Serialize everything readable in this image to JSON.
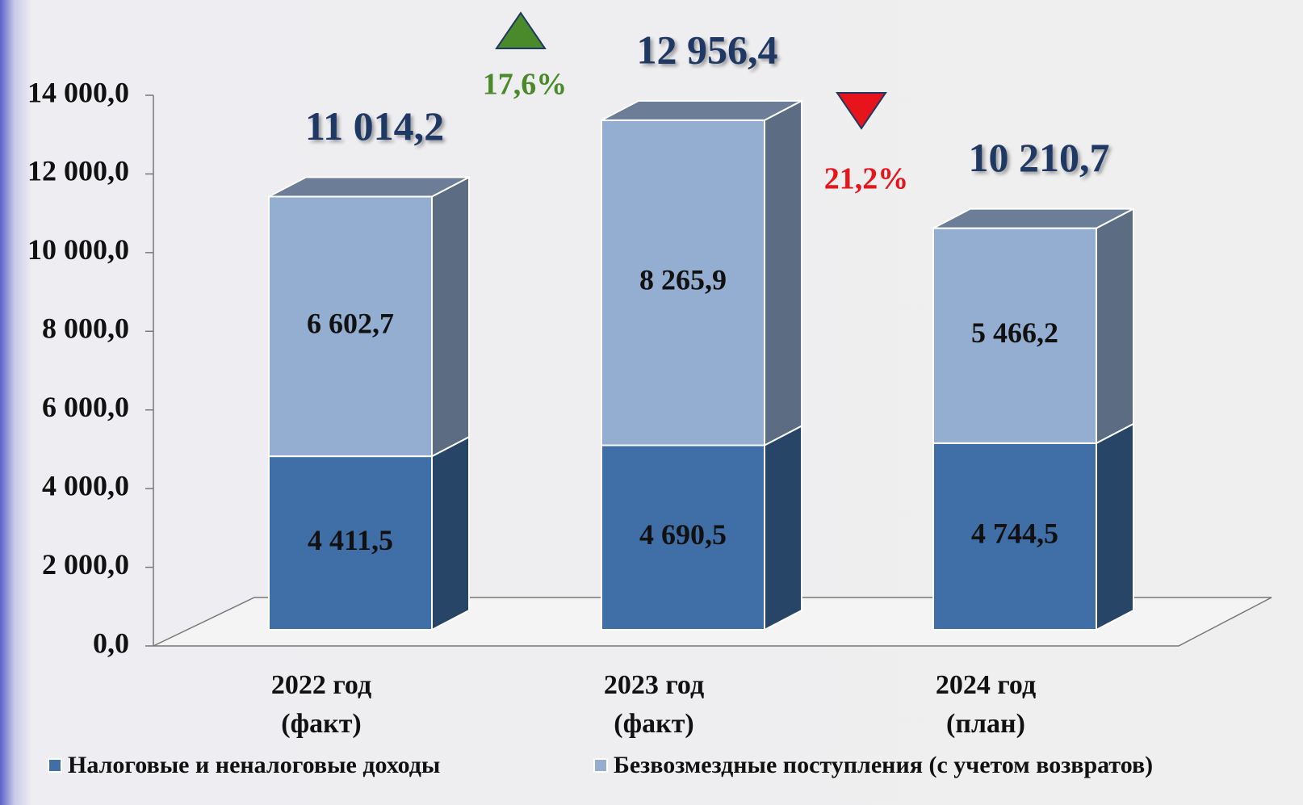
{
  "chart_data": {
    "type": "bar",
    "stacked": true,
    "categories": [
      "2022 год\n(факт)",
      "2023 год\n(факт)",
      "2024 год\n(план)"
    ],
    "series": [
      {
        "name": "Налоговые и неналоговые доходы",
        "color": "#3f6fa6",
        "values": [
          4411.5,
          4690.5,
          4744.5
        ],
        "value_labels": [
          "4 411,5",
          "4 690,5",
          "4 744,5"
        ]
      },
      {
        "name": "Безвозмездные поступления (с учетом возвратов)",
        "color": "#94aed2",
        "values": [
          6602.7,
          8265.9,
          5466.2
        ],
        "value_labels": [
          "6 602,7",
          "8 265,9",
          "5 466,2"
        ]
      }
    ],
    "totals": [
      11014.2,
      12956.4,
      10210.7
    ],
    "total_labels": [
      "11 014,2",
      "12 956,4",
      "10 210,7"
    ],
    "annotations": [
      {
        "text": "17,6%",
        "direction": "up",
        "color": "#4a8a2a"
      },
      {
        "text": "21,2%",
        "direction": "down",
        "color": "#e8141c"
      }
    ],
    "ylim": [
      0,
      14000
    ],
    "yticks": [
      {
        "value": 0,
        "label": "0,0"
      },
      {
        "value": 2000,
        "label": "2 000,0"
      },
      {
        "value": 4000,
        "label": "4 000,0"
      },
      {
        "value": 6000,
        "label": "6 000,0"
      },
      {
        "value": 8000,
        "label": "8 000,0"
      },
      {
        "value": 10000,
        "label": "10 000,0"
      },
      {
        "value": 12000,
        "label": "12 000,0"
      },
      {
        "value": 14000,
        "label": "14 000,0"
      }
    ]
  }
}
